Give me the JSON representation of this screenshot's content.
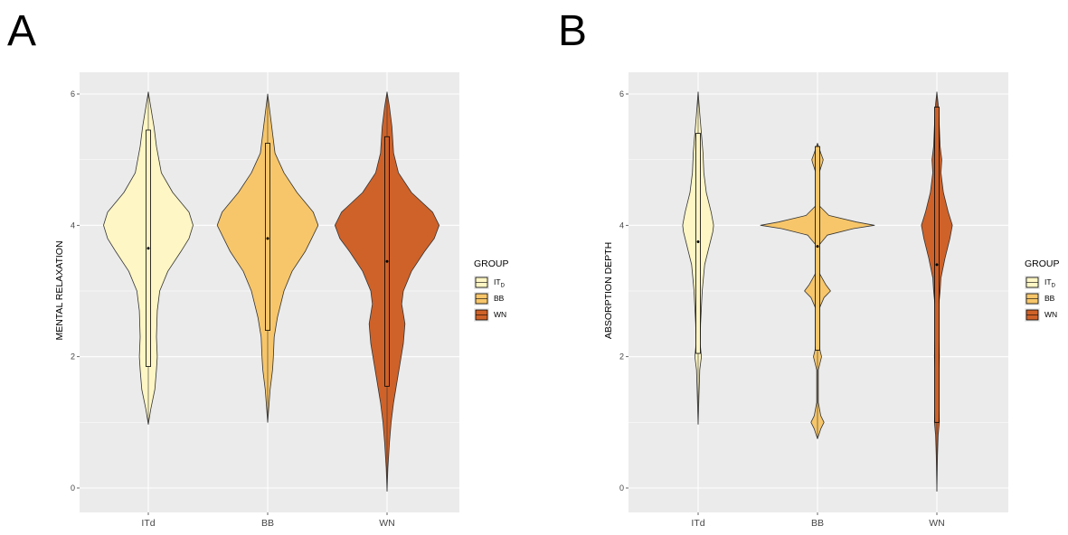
{
  "colors": {
    "ITd": "#fef6c4",
    "BB": "#f7c66a",
    "WN": "#cf6229",
    "panel_bg": "#ebebeb",
    "grid": "#ffffff",
    "outline": "#333333"
  },
  "chart_data": [
    {
      "panel_label": "A",
      "type": "violin",
      "ylabel": "MENTAL RELAXATION",
      "ylim": [
        0,
        6
      ],
      "yticks": [
        "0",
        "2",
        "4",
        "6"
      ],
      "categories": [
        "ITd",
        "BB",
        "WN"
      ],
      "legend": {
        "title": "GROUP",
        "placement": "right",
        "entries": [
          {
            "base": "IT",
            "sub": "D"
          },
          {
            "base": "BB",
            "sub": ""
          },
          {
            "base": "WN",
            "sub": ""
          }
        ]
      },
      "violins": [
        {
          "min": 0.97,
          "max": 6.03,
          "q1": 1.85,
          "q3": 5.45,
          "median": 3.65,
          "profile": [
            [
              0.97,
              0.0
            ],
            [
              1.2,
              0.015
            ],
            [
              1.5,
              0.04
            ],
            [
              1.8,
              0.05
            ],
            [
              2.0,
              0.055
            ],
            [
              2.3,
              0.05
            ],
            [
              2.7,
              0.055
            ],
            [
              3.0,
              0.07
            ],
            [
              3.3,
              0.12
            ],
            [
              3.6,
              0.2
            ],
            [
              3.8,
              0.25
            ],
            [
              4.0,
              0.275
            ],
            [
              4.2,
              0.25
            ],
            [
              4.5,
              0.15
            ],
            [
              4.8,
              0.08
            ],
            [
              5.2,
              0.05
            ],
            [
              5.5,
              0.035
            ],
            [
              5.8,
              0.015
            ],
            [
              6.03,
              0.0
            ]
          ]
        },
        {
          "min": 1.0,
          "max": 6.0,
          "q1": 2.4,
          "q3": 5.25,
          "median": 3.8,
          "profile": [
            [
              1.0,
              0.0
            ],
            [
              1.5,
              0.015
            ],
            [
              1.8,
              0.03
            ],
            [
              2.0,
              0.035
            ],
            [
              2.3,
              0.04
            ],
            [
              2.6,
              0.06
            ],
            [
              3.0,
              0.1
            ],
            [
              3.3,
              0.15
            ],
            [
              3.6,
              0.23
            ],
            [
              3.8,
              0.27
            ],
            [
              4.0,
              0.31
            ],
            [
              4.2,
              0.28
            ],
            [
              4.5,
              0.18
            ],
            [
              4.8,
              0.1
            ],
            [
              5.1,
              0.045
            ],
            [
              5.4,
              0.03
            ],
            [
              5.7,
              0.015
            ],
            [
              6.0,
              0.0
            ]
          ]
        },
        {
          "min": -0.05,
          "max": 6.03,
          "q1": 1.55,
          "q3": 5.35,
          "median": 3.45,
          "profile": [
            [
              -0.05,
              0.0
            ],
            [
              0.3,
              0.005
            ],
            [
              0.7,
              0.015
            ],
            [
              1.0,
              0.025
            ],
            [
              1.3,
              0.04
            ],
            [
              1.6,
              0.06
            ],
            [
              1.9,
              0.08
            ],
            [
              2.2,
              0.1
            ],
            [
              2.5,
              0.11
            ],
            [
              2.8,
              0.09
            ],
            [
              3.0,
              0.1
            ],
            [
              3.3,
              0.15
            ],
            [
              3.6,
              0.23
            ],
            [
              3.8,
              0.29
            ],
            [
              4.0,
              0.32
            ],
            [
              4.2,
              0.28
            ],
            [
              4.5,
              0.15
            ],
            [
              4.8,
              0.07
            ],
            [
              5.1,
              0.04
            ],
            [
              5.5,
              0.03
            ],
            [
              5.8,
              0.015
            ],
            [
              6.03,
              0.0
            ]
          ]
        }
      ]
    },
    {
      "panel_label": "B",
      "type": "violin",
      "ylabel": "ABSORPTION DEPTH",
      "ylim": [
        0,
        6
      ],
      "yticks": [
        "0",
        "2",
        "4",
        "6"
      ],
      "categories": [
        "ITd",
        "BB",
        "WN"
      ],
      "legend": {
        "title": "GROUP",
        "placement": "right",
        "entries": [
          {
            "base": "IT",
            "sub": "D"
          },
          {
            "base": "BB",
            "sub": ""
          },
          {
            "base": "WN",
            "sub": ""
          }
        ]
      },
      "violins": [
        {
          "min": 0.97,
          "max": 6.03,
          "q1": 2.05,
          "q3": 5.4,
          "median": 3.75,
          "profile": [
            [
              0.97,
              0.0
            ],
            [
              1.4,
              0.005
            ],
            [
              1.8,
              0.01
            ],
            [
              2.0,
              0.02
            ],
            [
              2.2,
              0.012
            ],
            [
              2.5,
              0.015
            ],
            [
              3.0,
              0.025
            ],
            [
              3.4,
              0.04
            ],
            [
              3.7,
              0.07
            ],
            [
              3.9,
              0.09
            ],
            [
              4.0,
              0.095
            ],
            [
              4.2,
              0.08
            ],
            [
              4.5,
              0.05
            ],
            [
              4.8,
              0.035
            ],
            [
              5.1,
              0.03
            ],
            [
              5.4,
              0.02
            ],
            [
              5.7,
              0.01
            ],
            [
              6.03,
              0.0
            ]
          ]
        },
        {
          "min": 0.75,
          "max": 5.25,
          "q1": 2.1,
          "q3": 5.2,
          "median": 3.68,
          "profile": [
            [
              0.75,
              0.0
            ],
            [
              0.9,
              0.02
            ],
            [
              1.0,
              0.04
            ],
            [
              1.1,
              0.02
            ],
            [
              1.3,
              0.005
            ],
            [
              1.8,
              0.005
            ],
            [
              1.95,
              0.02
            ],
            [
              2.0,
              0.025
            ],
            [
              2.1,
              0.015
            ],
            [
              2.3,
              0.005
            ],
            [
              2.7,
              0.005
            ],
            [
              2.9,
              0.04
            ],
            [
              3.0,
              0.08
            ],
            [
              3.1,
              0.05
            ],
            [
              3.3,
              0.005
            ],
            [
              3.7,
              0.01
            ],
            [
              3.85,
              0.06
            ],
            [
              3.95,
              0.22
            ],
            [
              4.0,
              0.35
            ],
            [
              4.05,
              0.24
            ],
            [
              4.15,
              0.07
            ],
            [
              4.3,
              0.01
            ],
            [
              4.8,
              0.01
            ],
            [
              4.95,
              0.03
            ],
            [
              5.0,
              0.035
            ],
            [
              5.1,
              0.02
            ],
            [
              5.25,
              0.0
            ]
          ]
        },
        {
          "min": -0.05,
          "max": 6.03,
          "q1": 1.0,
          "q3": 5.8,
          "median": 3.4,
          "profile": [
            [
              -0.05,
              0.0
            ],
            [
              0.5,
              0.004
            ],
            [
              0.8,
              0.008
            ],
            [
              1.0,
              0.015
            ],
            [
              1.3,
              0.01
            ],
            [
              1.6,
              0.008
            ],
            [
              2.0,
              0.015
            ],
            [
              2.4,
              0.01
            ],
            [
              2.8,
              0.012
            ],
            [
              3.0,
              0.02
            ],
            [
              3.2,
              0.025
            ],
            [
              3.5,
              0.05
            ],
            [
              3.8,
              0.08
            ],
            [
              4.0,
              0.095
            ],
            [
              4.2,
              0.07
            ],
            [
              4.5,
              0.04
            ],
            [
              4.8,
              0.025
            ],
            [
              5.0,
              0.03
            ],
            [
              5.2,
              0.02
            ],
            [
              5.5,
              0.015
            ],
            [
              5.8,
              0.01
            ],
            [
              6.03,
              0.0
            ]
          ]
        }
      ]
    }
  ]
}
